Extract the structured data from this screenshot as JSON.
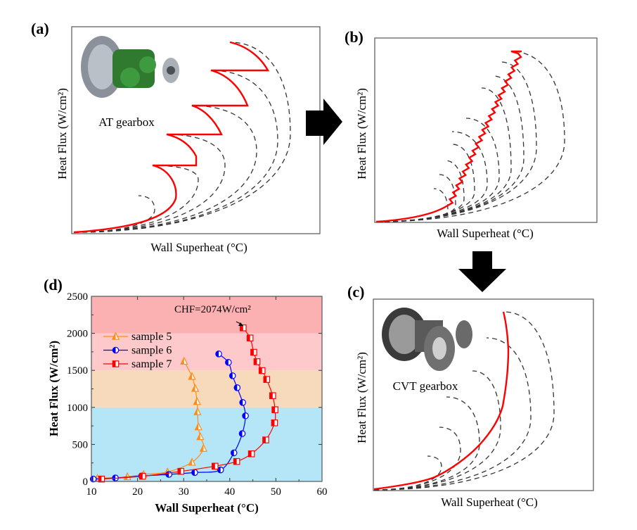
{
  "panels": {
    "a": {
      "label": "(a)",
      "ylabel": "Heat Flux (W/cm²)",
      "xlabel": "Wall Superheat (°C)",
      "image_caption": "AT gearbox"
    },
    "b": {
      "label": "(b)",
      "ylabel": "Heat Flux (W/cm²)",
      "xlabel": "Wall Superheat (°C)"
    },
    "c": {
      "label": "(c)",
      "ylabel": "Heat Flux (W/cm²)",
      "xlabel": "Wall Superheat (°C)",
      "image_caption": "CVT gearbox"
    },
    "d": {
      "label": "(d)"
    }
  },
  "colors": {
    "highlight_curve": "#ff0000",
    "dashed_curves": "#333333",
    "arrows": "#000000"
  },
  "chart_data": {
    "type": "line",
    "xlabel": "Wall Superheat (°C)",
    "ylabel": "Heat Flux (W/cm²)",
    "xlim": [
      10,
      60
    ],
    "ylim": [
      0,
      2500
    ],
    "xticks": [
      "10",
      "20",
      "30",
      "40",
      "50",
      "60"
    ],
    "yticks": [
      "0",
      "500",
      "1000",
      "1500",
      "2000",
      "2500"
    ],
    "grid": false,
    "legend_position": "top-left",
    "background_bands": [
      {
        "from": 0,
        "to": 1000,
        "color": "#b4e6f8"
      },
      {
        "from": 1000,
        "to": 1500,
        "color": "#f7dabb"
      },
      {
        "from": 1500,
        "to": 2000,
        "color": "#fdc9cb"
      },
      {
        "from": 2000,
        "to": 2500,
        "color": "#fbb1b1"
      }
    ],
    "annotation": {
      "text": "CHF=2074W/cm²",
      "x": 42.9,
      "y": 2074
    },
    "series": [
      {
        "name": "sample 5",
        "marker": "triangle",
        "color": "#ff8c1a",
        "x": [
          11.3,
          17.8,
          21.3,
          26.5,
          31.8,
          34.3,
          33.6,
          33.2,
          33.0,
          32.9,
          32.5,
          31.8,
          30.1
        ],
        "y": [
          41,
          63,
          95,
          127,
          259,
          446,
          604,
          737,
          940,
          1079,
          1256,
          1418,
          1623
        ]
      },
      {
        "name": "sample 6",
        "marker": "circle",
        "color": "#0000ff",
        "x": [
          10.4,
          15.2,
          20.9,
          26.8,
          32.4,
          38.0,
          40.9,
          42.7,
          43.4,
          42.8,
          41.6,
          40.6,
          39.7,
          37.6
        ],
        "y": [
          32,
          47,
          73,
          95,
          120,
          155,
          386,
          646,
          886,
          1066,
          1266,
          1427,
          1608,
          1722
        ]
      },
      {
        "name": "sample 7",
        "marker": "square",
        "color": "#ff0000",
        "x": [
          12.2,
          21.1,
          29.4,
          36.8,
          41.5,
          44.7,
          47.8,
          49.7,
          49.8,
          49.3,
          48.0,
          47.0,
          45.9,
          45.2,
          44.4,
          42.9
        ],
        "y": [
          32,
          70,
          136,
          206,
          269,
          373,
          560,
          791,
          968,
          1158,
          1377,
          1497,
          1617,
          1744,
          1937,
          2074
        ]
      }
    ]
  }
}
